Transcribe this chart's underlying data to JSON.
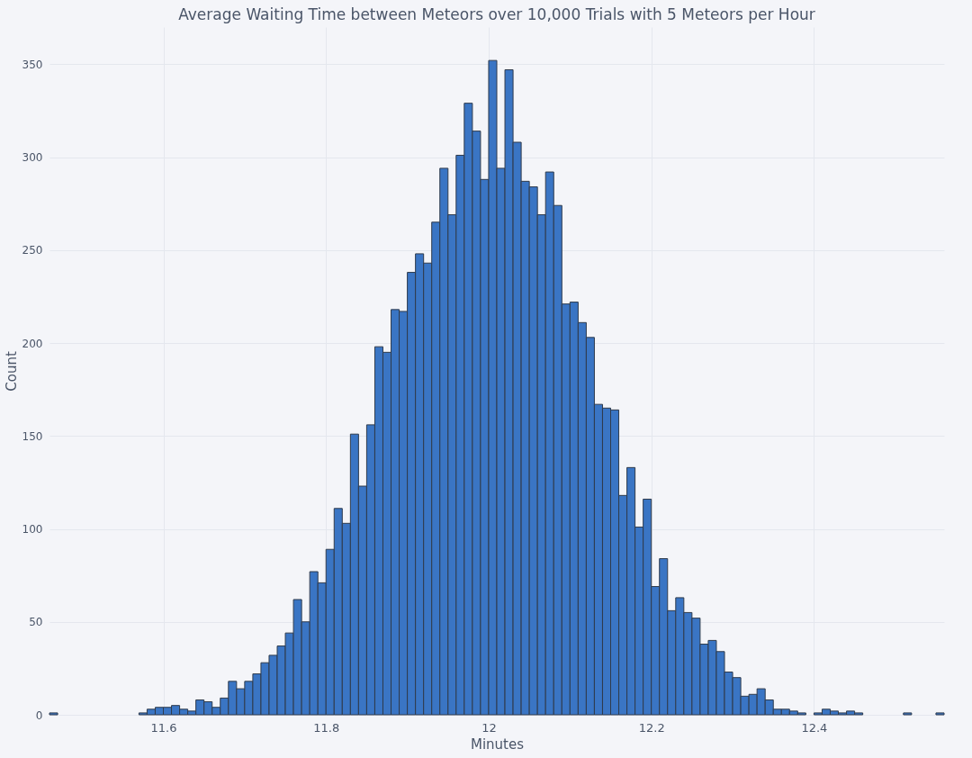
{
  "chart_data": {
    "type": "histogram",
    "title": "Average Waiting Time between Meteors over 10,000 Trials with 5 Meteors per Hour",
    "xlabel": "Minutes",
    "ylabel": "Count",
    "color": "#3a75c4",
    "bins": [
      11.46,
      11.47,
      11.48,
      11.49,
      11.5,
      11.51,
      11.52,
      11.53,
      11.54,
      11.55,
      11.56,
      11.57,
      11.58,
      11.59,
      11.6,
      11.61,
      11.62,
      11.63,
      11.64,
      11.65,
      11.66,
      11.67,
      11.68,
      11.69,
      11.7,
      11.71,
      11.72,
      11.73,
      11.74,
      11.75,
      11.76,
      11.77,
      11.78,
      11.79,
      11.8,
      11.81,
      11.82,
      11.83,
      11.84,
      11.85,
      11.86,
      11.87,
      11.88,
      11.89,
      11.9,
      11.91,
      11.92,
      11.93,
      11.94,
      11.95,
      11.96,
      11.97,
      11.98,
      11.99,
      12.0,
      12.01,
      12.02,
      12.03,
      12.04,
      12.05,
      12.06,
      12.07,
      12.08,
      12.09,
      12.1,
      12.11,
      12.12,
      12.13,
      12.14,
      12.15,
      12.16,
      12.17,
      12.18,
      12.19,
      12.2,
      12.21,
      12.22,
      12.23,
      12.24,
      12.25,
      12.26,
      12.27,
      12.28,
      12.29,
      12.3,
      12.31,
      12.32,
      12.33,
      12.34,
      12.35,
      12.36,
      12.37,
      12.38,
      12.39,
      12.4,
      12.41,
      12.42,
      12.43,
      12.44,
      12.45,
      12.46,
      12.47,
      12.48,
      12.49,
      12.5,
      12.51,
      12.52,
      12.53,
      12.54,
      12.55,
      12.56
    ],
    "values": [
      1,
      0,
      0,
      0,
      0,
      0,
      0,
      0,
      0,
      0,
      0,
      1,
      3,
      4,
      4,
      5,
      3,
      2,
      8,
      7,
      4,
      9,
      18,
      14,
      18,
      22,
      28,
      32,
      37,
      44,
      62,
      50,
      77,
      71,
      89,
      111,
      103,
      151,
      123,
      156,
      198,
      195,
      218,
      217,
      238,
      248,
      243,
      265,
      294,
      269,
      301,
      329,
      314,
      288,
      352,
      294,
      347,
      308,
      287,
      284,
      269,
      292,
      274,
      221,
      222,
      211,
      203,
      167,
      165,
      164,
      118,
      133,
      101,
      116,
      69,
      84,
      56,
      63,
      55,
      52,
      38,
      40,
      34,
      23,
      20,
      10,
      11,
      14,
      8,
      3,
      3,
      2,
      1,
      0,
      1,
      3,
      2,
      1,
      2,
      1,
      0,
      0,
      0,
      0,
      0,
      1,
      0,
      0,
      0,
      1
    ],
    "xlim": [
      11.46,
      12.56
    ],
    "ylim": [
      0,
      370
    ],
    "xticks": [
      11.6,
      11.8,
      12,
      12.2,
      12.4
    ],
    "yticks": [
      0,
      50,
      100,
      150,
      200,
      250,
      300,
      350
    ],
    "grid": true
  }
}
